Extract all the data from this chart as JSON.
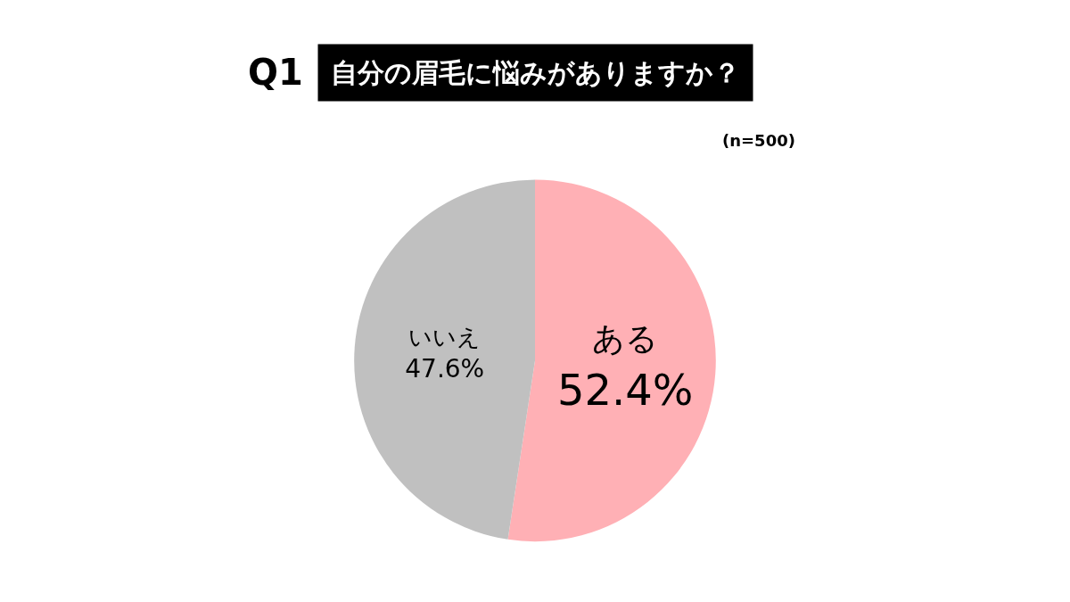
{
  "chart_data": {
    "type": "pie",
    "title": "自分の眉毛に悩みがありますか？",
    "subtitle": "(n=500)",
    "annotations": [
      "Q1"
    ],
    "categories": [
      "ある",
      "いいえ"
    ],
    "values": [
      52.4,
      47.6
    ],
    "value_labels": [
      "52.4%",
      "47.6%"
    ],
    "colors": [
      "#ffb0b5",
      "#c0c0c0"
    ],
    "legend": false
  }
}
